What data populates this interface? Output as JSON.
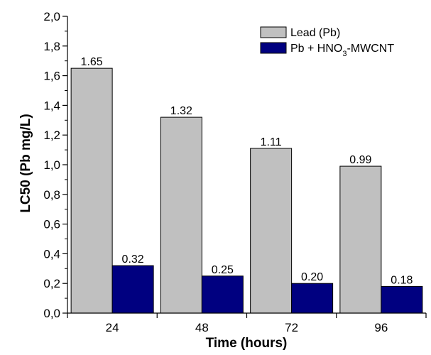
{
  "chart_data": {
    "type": "bar",
    "categories": [
      "24",
      "48",
      "72",
      "96"
    ],
    "series": [
      {
        "name": "Lead (Pb)",
        "values": [
          1.65,
          1.32,
          1.11,
          0.99
        ],
        "labels": [
          "1.65",
          "1.32",
          "1.11",
          "0.99"
        ],
        "color": "#c0c0c0"
      },
      {
        "name": "Pb + HNO3-MWCNT",
        "values": [
          0.32,
          0.25,
          0.2,
          0.18
        ],
        "labels": [
          "0.32",
          "0.25",
          "0.20",
          "0.18"
        ],
        "color": "#000080"
      }
    ],
    "xlabel": "Time (hours)",
    "ylabel": "LC50 (Pb mg/L)",
    "ylim": [
      0,
      2.0
    ],
    "yticks": [
      0,
      0.2,
      0.4,
      0.6,
      0.8,
      1.0,
      1.2,
      1.4,
      1.6,
      1.8,
      2.0
    ],
    "ytick_labels": [
      "0,0",
      "0,2",
      "0,4",
      "0,6",
      "0,8",
      "1,0",
      "1,2",
      "1,4",
      "1,6",
      "1,8",
      "2,0"
    ],
    "legend": {
      "placement": "top-right",
      "entries": [
        {
          "parts": [
            {
              "text": "Lead (Pb)"
            }
          ]
        },
        {
          "parts": [
            {
              "text": "Pb + HNO"
            },
            {
              "text": "3",
              "sub": true
            },
            {
              "text": "-MWCNT"
            }
          ]
        }
      ]
    },
    "grid": false
  }
}
